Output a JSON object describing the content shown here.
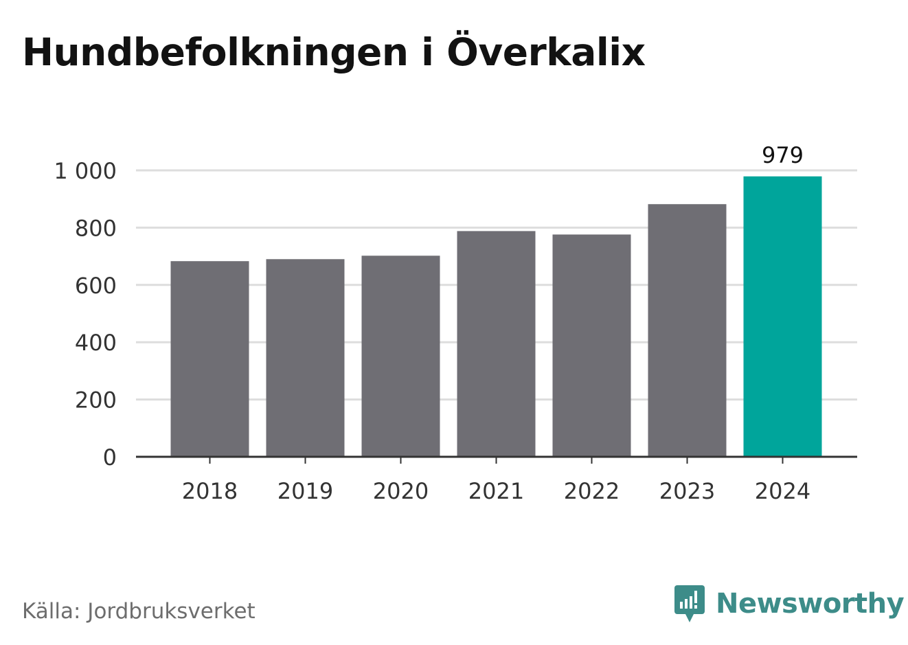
{
  "title": "Hundbefolkningen i Överkalix",
  "source": "Källa: Jordbruksverket",
  "brand": {
    "name": "Newsworthy",
    "icon": "newsworthy-logo-icon",
    "color": "#3d8c89"
  },
  "chart_data": {
    "type": "bar",
    "title": "Hundbefolkningen i Överkalix",
    "xlabel": "",
    "ylabel": "",
    "categories": [
      "2018",
      "2019",
      "2020",
      "2021",
      "2022",
      "2023",
      "2024"
    ],
    "values": [
      683,
      690,
      702,
      788,
      776,
      882,
      979
    ],
    "ylim": [
      0,
      1000
    ],
    "yticks": [
      0,
      200,
      400,
      600,
      800,
      1000
    ],
    "ytick_labels": [
      "0",
      "200",
      "400",
      "600",
      "800",
      "1 000"
    ],
    "data_labels": [
      {
        "category": "2024",
        "text": "979"
      }
    ],
    "colors": {
      "default": "#6f6e74",
      "highlight": "#00a59b",
      "grid": "#dddddd",
      "axis": "#333333"
    },
    "highlight_category": "2024",
    "grid": true,
    "legend": "none"
  }
}
